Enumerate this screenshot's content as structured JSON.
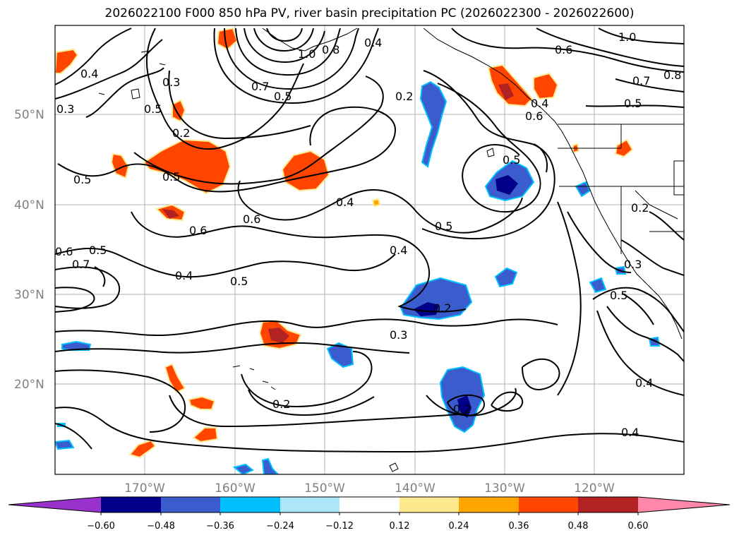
{
  "title": "2026022100 F000 850 hPa PV, river basin precipitation PC (2026022300 - 2026022600)",
  "lat_labels": [
    "50°N",
    "40°N",
    "30°N",
    "20°N"
  ],
  "lon_labels": [
    "170°W",
    "160°W",
    "150°W",
    "140°W",
    "130°W",
    "120°W"
  ],
  "colorbar": {
    "tick_labels": [
      "−0.60",
      "−0.48",
      "−0.36",
      "−0.24",
      "−0.12",
      "0.12",
      "0.24",
      "0.36",
      "0.48",
      "0.60"
    ],
    "under_color": "#9932cc",
    "over_color": "#ff88aa",
    "bin_colors": [
      "#00008b",
      "#3a5ccc",
      "#00bfff",
      "#ade6f8",
      "#ffffff",
      "#ffe98f",
      "#ffa500",
      "#ff4500",
      "#b22222"
    ]
  },
  "contour_labels": [
    "0.4",
    "0.3",
    "0.5",
    "0.3",
    "0.7",
    "0.5",
    "1.0",
    "0.8",
    "0.4",
    "0.6",
    "1.0",
    "0.6",
    "0.7",
    "0.8",
    "0.5",
    "0.2",
    "0.4",
    "0.5",
    "0.2",
    "0.5",
    "0.5",
    "0.6",
    "0.6",
    "0.4",
    "0.5",
    "0.4",
    "0.2",
    "0.6",
    "0.5",
    "0.7",
    "0.4",
    "0.5",
    "0.3",
    "0.5",
    "0.2",
    "0.3",
    "0.2",
    "0.4",
    "0.2"
  ]
}
